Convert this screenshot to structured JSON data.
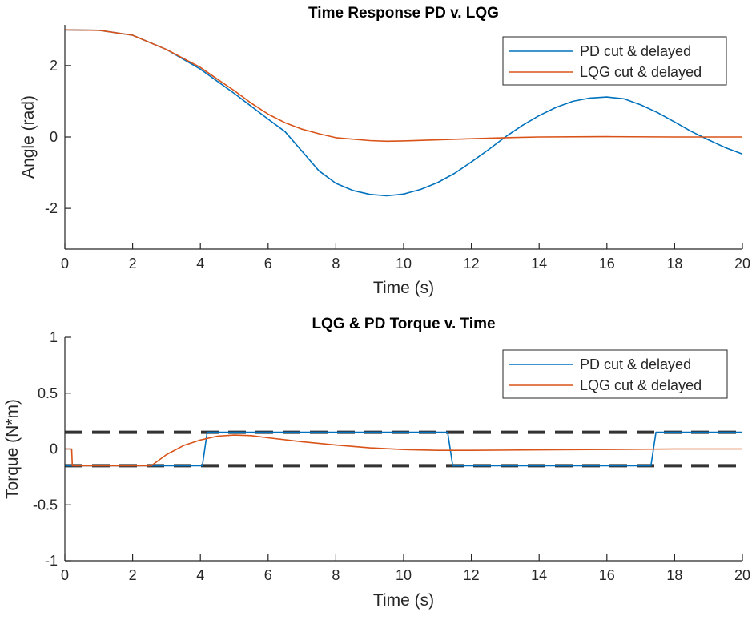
{
  "colors": {
    "pd": "#0072BD",
    "lqg": "#D95319",
    "limit": "#333333",
    "axis": "#262626"
  },
  "chart_data": [
    {
      "type": "line",
      "title": "Time Response PD v. LQG",
      "xlabel": "Time (s)",
      "ylabel": "Angle (rad)",
      "xlim": [
        0,
        20
      ],
      "ylim": [
        -3.1416,
        3.1416
      ],
      "xticks": [
        0,
        2,
        4,
        6,
        8,
        10,
        12,
        14,
        16,
        18,
        20
      ],
      "yticks": [
        -2,
        0,
        2
      ],
      "grid": false,
      "legend_position": "top-right",
      "series": [
        {
          "name": "PD cut & delayed",
          "color_key": "pd",
          "x": [
            0,
            1,
            2,
            3,
            4,
            5,
            6,
            6.5,
            7,
            7.5,
            8,
            8.5,
            9,
            9.5,
            10,
            10.5,
            11,
            11.5,
            12,
            12.5,
            13,
            13.5,
            14,
            14.5,
            15,
            15.5,
            16,
            16.5,
            17,
            17.5,
            18,
            18.5,
            19,
            19.5,
            20
          ],
          "y": [
            3,
            2.99,
            2.85,
            2.45,
            1.9,
            1.22,
            0.5,
            0.15,
            -0.4,
            -0.95,
            -1.3,
            -1.5,
            -1.61,
            -1.65,
            -1.6,
            -1.47,
            -1.28,
            -1.02,
            -0.7,
            -0.36,
            0,
            0.32,
            0.6,
            0.83,
            1.0,
            1.09,
            1.12,
            1.07,
            0.9,
            0.68,
            0.42,
            0.15,
            -0.08,
            -0.3,
            -0.48
          ]
        },
        {
          "name": "LQG cut & delayed",
          "color_key": "lqg",
          "x": [
            0,
            1,
            2,
            3,
            4,
            4.5,
            5,
            5.5,
            6,
            6.5,
            7,
            7.5,
            8,
            9,
            9.5,
            10,
            11,
            12,
            13,
            14,
            16,
            18,
            20
          ],
          "y": [
            3,
            2.99,
            2.85,
            2.45,
            1.95,
            1.62,
            1.3,
            0.95,
            0.64,
            0.4,
            0.22,
            0.09,
            -0.02,
            -0.1,
            -0.12,
            -0.11,
            -0.08,
            -0.05,
            -0.02,
            0,
            0.01,
            0,
            0
          ]
        }
      ]
    },
    {
      "type": "line",
      "title": "LQG & PD Torque v. Time",
      "xlabel": "Time (s)",
      "ylabel": "Torque (N*m)",
      "xlim": [
        0,
        20
      ],
      "ylim": [
        -1,
        1
      ],
      "xticks": [
        0,
        2,
        4,
        6,
        8,
        10,
        12,
        14,
        16,
        18,
        20
      ],
      "yticks": [
        -1,
        -0.5,
        0,
        0.5,
        1
      ],
      "grid": false,
      "legend_position": "top-right",
      "limits": [
        0.15,
        -0.15
      ],
      "series": [
        {
          "name": "PD cut & delayed",
          "color_key": "pd",
          "x": [
            0,
            4.06,
            4.2,
            11.3,
            11.45,
            17.3,
            17.45,
            20
          ],
          "y": [
            -0.15,
            -0.15,
            0.15,
            0.15,
            -0.15,
            -0.15,
            0.15,
            0.15
          ]
        },
        {
          "name": "LQG cut & delayed",
          "color_key": "lqg",
          "x": [
            0,
            0.2,
            0.22,
            2.55,
            3,
            3.5,
            4,
            4.5,
            5,
            5.5,
            6,
            7,
            8,
            9,
            10,
            11,
            12,
            14,
            16,
            18,
            20
          ],
          "y": [
            0,
            0,
            -0.15,
            -0.15,
            -0.05,
            0.03,
            0.08,
            0.115,
            0.125,
            0.12,
            0.1,
            0.065,
            0.035,
            0.01,
            -0.005,
            -0.012,
            -0.012,
            -0.008,
            -0.004,
            0,
            0
          ]
        }
      ]
    }
  ]
}
